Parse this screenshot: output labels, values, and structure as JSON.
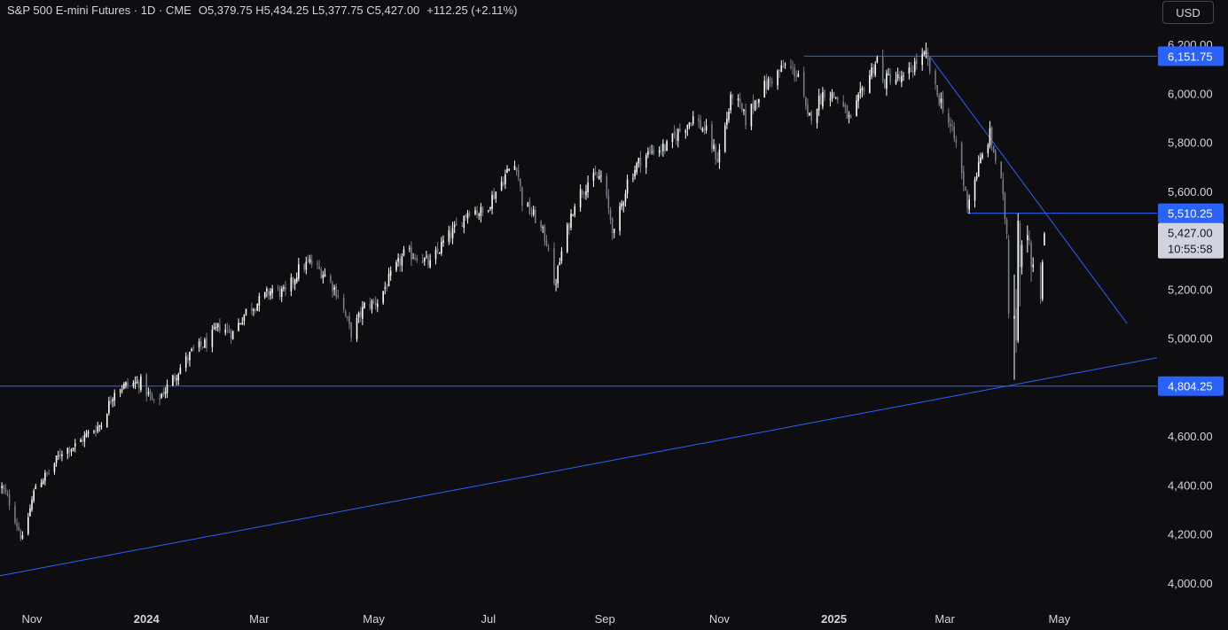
{
  "header": {
    "title": "S&P 500 E-mini Futures · 1D · CME",
    "open_label": "O",
    "open": "5,379.75",
    "high_label": "H",
    "high": "5,434.25",
    "low_label": "L",
    "low": "5,377.75",
    "close_label": "C",
    "close": "5,427.00",
    "change": "+112.25 (+2.11%)"
  },
  "currency_button": "USD",
  "colors": {
    "background": "#0e0e10",
    "candle_up": "#ffffff",
    "candle_down": "#787b86",
    "line": "#2962ff",
    "label_blue": "#2962ff",
    "price_label": "#d1d4dc"
  },
  "chart_data": {
    "type": "candlestick",
    "x_axis": {
      "tick_labels": [
        "Nov",
        "2024",
        "Mar",
        "May",
        "Jul",
        "Sep",
        "Nov",
        "2025",
        "Mar",
        "May"
      ],
      "tick_dates": [
        "2023-11-01",
        "2024-01-01",
        "2024-03-01",
        "2024-05-01",
        "2024-07-01",
        "2024-09-01",
        "2024-11-01",
        "2025-01-01",
        "2025-03-01",
        "2025-05-01"
      ],
      "range": [
        "2023-10-15",
        "2025-06-22"
      ],
      "bold_labels": [
        "2024",
        "2025"
      ]
    },
    "y_axis": {
      "tick_labels": [
        "6,200.00",
        "6,000.00",
        "5,800.00",
        "5,600.00",
        "5,400.00",
        "5,200.00",
        "5,000.00",
        "4,800.00",
        "4,600.00",
        "4,400.00",
        "4,200.00",
        "4,000.00"
      ],
      "ticks": [
        6200,
        6000,
        5800,
        5600,
        5400,
        5200,
        5000,
        4800,
        4600,
        4400,
        4200,
        4000
      ],
      "range": [
        3980,
        6260
      ]
    },
    "price_anchors": [
      [
        "2023-10-16",
        4390
      ],
      [
        "2023-10-20",
        4330
      ],
      [
        "2023-10-27",
        4175
      ],
      [
        "2023-11-03",
        4400
      ],
      [
        "2023-11-10",
        4450
      ],
      [
        "2023-11-17",
        4540
      ],
      [
        "2023-11-24",
        4560
      ],
      [
        "2023-12-01",
        4610
      ],
      [
        "2023-12-08",
        4650
      ],
      [
        "2023-12-15",
        4790
      ],
      [
        "2023-12-22",
        4810
      ],
      [
        "2023-12-29",
        4820
      ],
      [
        "2024-01-05",
        4730
      ],
      [
        "2024-01-12",
        4800
      ],
      [
        "2024-01-19",
        4880
      ],
      [
        "2024-01-26",
        4950
      ],
      [
        "2024-02-02",
        4980
      ],
      [
        "2024-02-09",
        5050
      ],
      [
        "2024-02-16",
        5020
      ],
      [
        "2024-02-23",
        5110
      ],
      [
        "2024-03-01",
        5150
      ],
      [
        "2024-03-08",
        5200
      ],
      [
        "2024-03-15",
        5180
      ],
      [
        "2024-03-22",
        5280
      ],
      [
        "2024-03-28",
        5310
      ],
      [
        "2024-04-05",
        5260
      ],
      [
        "2024-04-12",
        5180
      ],
      [
        "2024-04-19",
        5020
      ],
      [
        "2024-04-26",
        5130
      ],
      [
        "2024-05-03",
        5150
      ],
      [
        "2024-05-10",
        5250
      ],
      [
        "2024-05-17",
        5340
      ],
      [
        "2024-05-24",
        5340
      ],
      [
        "2024-05-31",
        5300
      ],
      [
        "2024-06-07",
        5390
      ],
      [
        "2024-06-14",
        5450
      ],
      [
        "2024-06-21",
        5530
      ],
      [
        "2024-06-28",
        5510
      ],
      [
        "2024-07-05",
        5600
      ],
      [
        "2024-07-12",
        5690
      ],
      [
        "2024-07-16",
        5710
      ],
      [
        "2024-07-19",
        5560
      ],
      [
        "2024-07-26",
        5490
      ],
      [
        "2024-08-02",
        5380
      ],
      [
        "2024-08-05",
        5200
      ],
      [
        "2024-08-09",
        5350
      ],
      [
        "2024-08-16",
        5560
      ],
      [
        "2024-08-23",
        5640
      ],
      [
        "2024-08-30",
        5660
      ],
      [
        "2024-09-06",
        5420
      ],
      [
        "2024-09-13",
        5640
      ],
      [
        "2024-09-20",
        5730
      ],
      [
        "2024-09-27",
        5770
      ],
      [
        "2024-10-04",
        5780
      ],
      [
        "2024-10-11",
        5850
      ],
      [
        "2024-10-18",
        5900
      ],
      [
        "2024-10-25",
        5840
      ],
      [
        "2024-10-31",
        5730
      ],
      [
        "2024-11-08",
        6000
      ],
      [
        "2024-11-15",
        5890
      ],
      [
        "2024-11-22",
        6000
      ],
      [
        "2024-11-29",
        6060
      ],
      [
        "2024-12-06",
        6110
      ],
      [
        "2024-12-13",
        6080
      ],
      [
        "2024-12-18",
        5890
      ],
      [
        "2024-12-27",
        6010
      ],
      [
        "2025-01-03",
        5980
      ],
      [
        "2025-01-10",
        5880
      ],
      [
        "2025-01-17",
        6030
      ],
      [
        "2025-01-24",
        6140
      ],
      [
        "2025-01-27",
        6040
      ],
      [
        "2025-01-31",
        6070
      ],
      [
        "2025-02-07",
        6050
      ],
      [
        "2025-02-14",
        6130
      ],
      [
        "2025-02-19",
        6150
      ],
      [
        "2025-02-24",
        6010
      ],
      [
        "2025-02-28",
        5950
      ],
      [
        "2025-03-07",
        5790
      ],
      [
        "2025-03-13",
        5550
      ],
      [
        "2025-03-19",
        5700
      ],
      [
        "2025-03-25",
        5830
      ],
      [
        "2025-03-31",
        5630
      ],
      [
        "2025-04-03",
        5430
      ],
      [
        "2025-04-07",
        5050
      ],
      [
        "2025-04-09",
        5480
      ],
      [
        "2025-04-10",
        5290
      ],
      [
        "2025-04-11",
        5380
      ],
      [
        "2025-04-16",
        5290
      ],
      [
        "2025-04-21",
        5150
      ],
      [
        "2025-04-22",
        5320
      ],
      [
        "2025-04-23",
        5427
      ]
    ],
    "last_candle": {
      "date": "2025-04-23",
      "open": 5379.75,
      "high": 5434.25,
      "low": 5377.75,
      "close": 5427.0
    },
    "annotations": {
      "horizontal_lines": [
        {
          "price": 6151.75,
          "label": "6,151.75",
          "from": "2024-12-16",
          "to": "2025-06-22"
        },
        {
          "price": 5510.25,
          "label": "5,510.25",
          "from": "2025-03-13",
          "to": "2025-06-22"
        },
        {
          "price": 4804.25,
          "label": "4,804.25",
          "from": "2023-10-15",
          "to": "2025-06-22"
        }
      ],
      "trendlines": [
        {
          "from": [
            "2025-02-21",
            6150
          ],
          "to": [
            "2025-06-06",
            5060
          ]
        },
        {
          "from": [
            "2023-10-15",
            4030
          ],
          "to": [
            "2025-06-22",
            4920
          ]
        }
      ]
    },
    "current_price": {
      "label": "5,427.00",
      "countdown": "10:55:58",
      "price": 5427.0
    }
  }
}
